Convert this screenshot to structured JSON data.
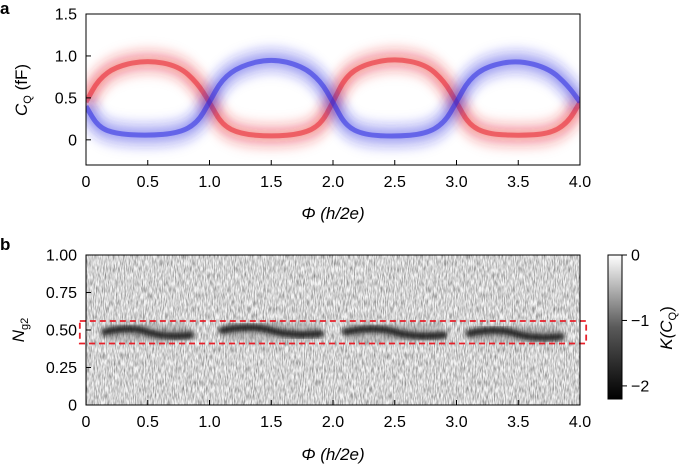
{
  "chart_data": [
    {
      "panel": "a",
      "type": "heatmap",
      "title": "",
      "xlabel": "Φ (h/2e)",
      "ylabel_main": "C",
      "ylabel_sub": "Q",
      "ylabel_unit": " (fF)",
      "xlim": [
        0,
        4.0
      ],
      "ylim": [
        -0.3,
        1.5
      ],
      "xticks": [
        0,
        0.5,
        1.0,
        1.5,
        2.0,
        2.5,
        3.0,
        3.5,
        4.0
      ],
      "xtick_labels": [
        "0",
        "0.5",
        "1.0",
        "1.5",
        "2.0",
        "2.5",
        "3.0",
        "3.5",
        "4.0"
      ],
      "yticks": [
        0,
        0.5,
        1.0,
        1.5
      ],
      "ytick_labels": [
        "0",
        "0.5",
        "1.0",
        "1.5"
      ],
      "series": [
        {
          "name": "red branch",
          "color": "#e8202a",
          "x": [
            0,
            0.1,
            0.25,
            0.5,
            0.75,
            0.9,
            1.0,
            1.1,
            1.25,
            1.5,
            1.75,
            1.9,
            2.0,
            2.1,
            2.25,
            2.5,
            2.75,
            2.9,
            3.0,
            3.1,
            3.25,
            3.5,
            3.75,
            3.9,
            4.0
          ],
          "y": [
            0.45,
            0.72,
            0.88,
            0.95,
            0.88,
            0.68,
            0.45,
            0.18,
            0.07,
            0.04,
            0.07,
            0.18,
            0.45,
            0.75,
            0.9,
            0.97,
            0.9,
            0.7,
            0.45,
            0.18,
            0.07,
            0.05,
            0.07,
            0.2,
            0.45
          ]
        },
        {
          "name": "blue branch",
          "color": "#2a2ae0",
          "x": [
            0,
            0.1,
            0.25,
            0.5,
            0.75,
            0.9,
            1.0,
            1.1,
            1.25,
            1.5,
            1.75,
            1.9,
            2.0,
            2.1,
            2.25,
            2.5,
            2.75,
            2.9,
            3.0,
            3.1,
            3.25,
            3.5,
            3.75,
            3.9,
            4.0
          ],
          "y": [
            0.4,
            0.15,
            0.07,
            0.05,
            0.08,
            0.2,
            0.45,
            0.72,
            0.88,
            0.97,
            0.88,
            0.7,
            0.45,
            0.17,
            0.06,
            0.04,
            0.07,
            0.2,
            0.45,
            0.72,
            0.88,
            0.95,
            0.85,
            0.65,
            0.45
          ]
        }
      ]
    },
    {
      "panel": "b",
      "type": "heatmap",
      "title": "",
      "xlabel": "Φ (h/2e)",
      "ylabel_main": "N",
      "ylabel_sub": "g2",
      "xlim": [
        0,
        4.0
      ],
      "ylim": [
        0,
        1.0
      ],
      "xticks": [
        0,
        0.5,
        1.0,
        1.5,
        2.0,
        2.5,
        3.0,
        3.5,
        4.0
      ],
      "xtick_labels": [
        "0",
        "0.5",
        "1.0",
        "1.5",
        "2.0",
        "2.5",
        "3.0",
        "3.5",
        "4.0"
      ],
      "yticks": [
        0,
        0.25,
        0.5,
        0.75,
        1.0
      ],
      "ytick_labels": [
        "0",
        "0.25",
        "0.50",
        "0.75",
        "1.00"
      ],
      "band_segments": [
        {
          "x_start": 0.15,
          "x_end": 0.85,
          "y_center": 0.48,
          "value": -2
        },
        {
          "x_start": 1.1,
          "x_end": 1.9,
          "y_center": 0.49,
          "value": -2
        },
        {
          "x_start": 2.1,
          "x_end": 2.9,
          "y_center": 0.48,
          "value": -2
        },
        {
          "x_start": 3.1,
          "x_end": 3.85,
          "y_center": 0.47,
          "value": -2
        }
      ],
      "highlight_box": {
        "x_start": -0.05,
        "x_end": 4.05,
        "y_start": 0.41,
        "y_end": 0.56,
        "color": "#e8202a",
        "style": "dashed"
      },
      "colorbar": {
        "label_main": "K(C",
        "label_sub": "Q",
        "label_end": ")",
        "ticks": [
          0,
          -1,
          -2
        ],
        "tick_labels": [
          "0",
          "−1",
          "−2"
        ],
        "range": [
          -2.2,
          0
        ],
        "color_low": "#000000",
        "color_high": "#ffffff"
      }
    }
  ],
  "panel_labels": {
    "a": "a",
    "b": "b"
  }
}
